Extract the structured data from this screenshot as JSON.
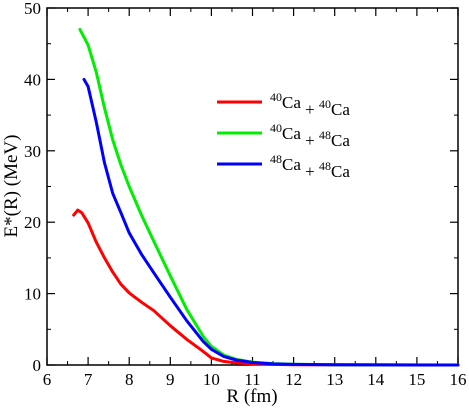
{
  "chart_data": {
    "type": "line",
    "xlabel": "R (fm)",
    "ylabel": "E*(R) (MeV)",
    "xlim": [
      6,
      16
    ],
    "ylim": [
      0,
      50
    ],
    "xticks": [
      "6",
      "7",
      "8",
      "9",
      "10",
      "11",
      "12",
      "13",
      "14",
      "15",
      "16"
    ],
    "yticks": [
      "0",
      "10",
      "20",
      "30",
      "40",
      "50"
    ],
    "grid": false,
    "legend_position": "center-right",
    "series": [
      {
        "name": "40Ca + 40Ca",
        "legend": {
          "a1": "40",
          "e1": "Ca",
          "op": "+",
          "a2": "40",
          "e2": "Ca"
        },
        "color": "#ff0000",
        "x": [
          6.65,
          6.75,
          6.85,
          7.0,
          7.2,
          7.4,
          7.6,
          7.8,
          8.0,
          8.3,
          8.6,
          9.0,
          9.4,
          9.8,
          10.0,
          10.3,
          10.6,
          11.0,
          11.5,
          12.0,
          13.0,
          14.0,
          15.0,
          16.0
        ],
        "y": [
          21.0,
          21.7,
          21.3,
          19.9,
          17.2,
          15.0,
          13.0,
          11.3,
          10.1,
          8.8,
          7.6,
          5.5,
          3.6,
          1.9,
          1.0,
          0.5,
          0.3,
          0.15,
          0.08,
          0.04,
          0.02,
          0.01,
          0.0,
          0.0
        ]
      },
      {
        "name": "40Ca + 48Ca",
        "legend": {
          "a1": "40",
          "e1": "Ca",
          "op": "+",
          "a2": "48",
          "e2": "Ca"
        },
        "color": "#00ee00",
        "x": [
          6.8,
          7.0,
          7.2,
          7.4,
          7.6,
          7.8,
          8.0,
          8.3,
          8.6,
          9.0,
          9.4,
          9.8,
          10.0,
          10.3,
          10.6,
          11.0,
          11.5,
          12.0,
          13.0,
          14.0,
          15.0,
          16.0
        ],
        "y": [
          47.0,
          44.8,
          41.0,
          36.0,
          31.5,
          28.0,
          25.0,
          21.0,
          17.3,
          12.5,
          7.8,
          4.0,
          2.6,
          1.4,
          0.8,
          0.4,
          0.2,
          0.1,
          0.04,
          0.02,
          0.01,
          0.0
        ]
      },
      {
        "name": "48Ca + 48Ca",
        "legend": {
          "a1": "48",
          "e1": "Ca",
          "op": "+",
          "a2": "48",
          "e2": "Ca"
        },
        "color": "#0000ff",
        "x": [
          6.9,
          7.0,
          7.2,
          7.4,
          7.6,
          7.8,
          8.0,
          8.3,
          8.6,
          9.0,
          9.4,
          9.8,
          10.0,
          10.3,
          10.6,
          11.0,
          11.5,
          12.0,
          13.0,
          14.0,
          15.0,
          16.0
        ],
        "y": [
          40.0,
          39.0,
          34.0,
          28.3,
          24.0,
          21.3,
          18.5,
          15.5,
          12.9,
          9.5,
          6.2,
          3.3,
          2.2,
          1.2,
          0.7,
          0.35,
          0.15,
          0.08,
          0.03,
          0.01,
          0.0,
          0.0
        ]
      }
    ]
  }
}
